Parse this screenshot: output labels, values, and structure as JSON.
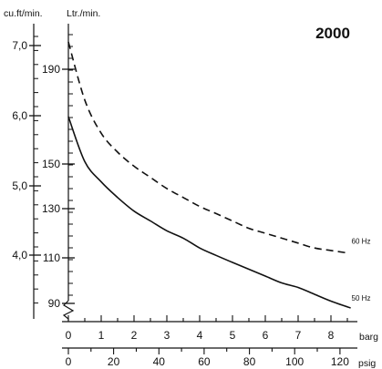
{
  "chart_data": {
    "type": "line",
    "title": "2000",
    "y_left_outer_label": "cu.ft/min.",
    "y_left_inner_label": "Ltr./min.",
    "x_bottom_upper_label": "barg",
    "x_bottom_lower_label": "psig",
    "y_outer_ticks": [
      "7,0",
      "6,0",
      "5,0",
      "4,0"
    ],
    "y_inner_ticks": [
      "190",
      "150",
      "130",
      "110",
      "90"
    ],
    "x_barg_ticks": [
      "0",
      "1",
      "2",
      "3",
      "4",
      "5",
      "6",
      "7",
      "8"
    ],
    "x_psig_ticks": [
      "0",
      "20",
      "40",
      "60",
      "80",
      "100",
      "120"
    ],
    "ylim_ltr_per_min": [
      90,
      200
    ],
    "xlim_barg": [
      0,
      8.7
    ],
    "series": [
      {
        "name": "60 Hz",
        "line_style": "dashed",
        "x": [
          0,
          0.5,
          1,
          1.5,
          2,
          2.5,
          3,
          3.5,
          4,
          4.5,
          5,
          5.5,
          6,
          6.5,
          7,
          7.5,
          8,
          8.5
        ],
        "y": [
          202,
          177,
          163,
          155,
          149,
          144,
          139,
          135,
          131,
          128,
          125,
          122,
          120,
          118,
          116,
          114,
          113,
          112
        ]
      },
      {
        "name": "50 Hz",
        "line_style": "solid",
        "x": [
          0,
          0.5,
          1,
          1.5,
          2,
          2.5,
          3,
          3.5,
          4,
          4.5,
          5,
          5.5,
          6,
          6.5,
          7,
          7.5,
          8,
          8.6
        ],
        "y": [
          170,
          151,
          142,
          135,
          129,
          125,
          121,
          118,
          114,
          111,
          108,
          105,
          102,
          99,
          97,
          94,
          91,
          88
        ]
      }
    ]
  }
}
